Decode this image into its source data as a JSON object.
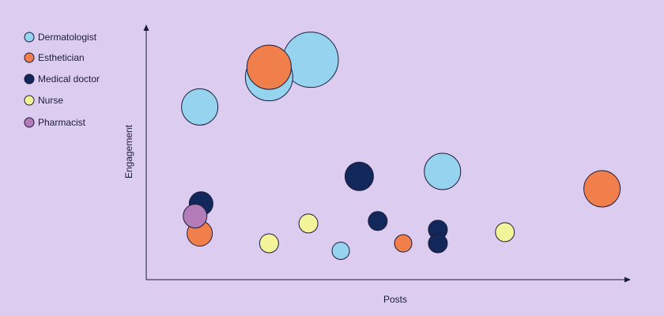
{
  "chart_data": {
    "type": "scatter",
    "xlabel": "Posts",
    "ylabel": "Engagement",
    "xlim": [
      0,
      100
    ],
    "ylim": [
      0,
      100
    ],
    "grid": false,
    "legend_position": "top-left",
    "series": [
      {
        "name": "Dermatologist",
        "color": "#95d3ef",
        "points": [
          {
            "x": 9,
            "y": 69,
            "size": 23
          },
          {
            "x": 24,
            "y": 81,
            "size": 30
          },
          {
            "x": 33,
            "y": 88,
            "size": 35
          },
          {
            "x": 39.5,
            "y": 11,
            "size": 11
          },
          {
            "x": 61.5,
            "y": 43,
            "size": 23
          }
        ]
      },
      {
        "name": "Esthetician",
        "color": "#f07f4c",
        "points": [
          {
            "x": 24,
            "y": 85,
            "size": 28
          },
          {
            "x": 9,
            "y": 18,
            "size": 16
          },
          {
            "x": 53,
            "y": 14,
            "size": 11
          },
          {
            "x": 96,
            "y": 36,
            "size": 23
          }
        ]
      },
      {
        "name": "Medical doctor",
        "color": "#13285a",
        "points": [
          {
            "x": 9.3,
            "y": 30,
            "size": 15
          },
          {
            "x": 43.5,
            "y": 41,
            "size": 18
          },
          {
            "x": 47.5,
            "y": 23,
            "size": 12
          },
          {
            "x": 60.5,
            "y": 19.5,
            "size": 12
          },
          {
            "x": 60.5,
            "y": 14,
            "size": 12
          }
        ]
      },
      {
        "name": "Nurse",
        "color": "#f3f39a",
        "points": [
          {
            "x": 24,
            "y": 14,
            "size": 12
          },
          {
            "x": 32.5,
            "y": 22,
            "size": 12
          },
          {
            "x": 75,
            "y": 18.5,
            "size": 12
          }
        ]
      },
      {
        "name": "Pharmacist",
        "color": "#b37cb8",
        "points": [
          {
            "x": 8,
            "y": 25,
            "size": 15
          }
        ]
      }
    ]
  }
}
